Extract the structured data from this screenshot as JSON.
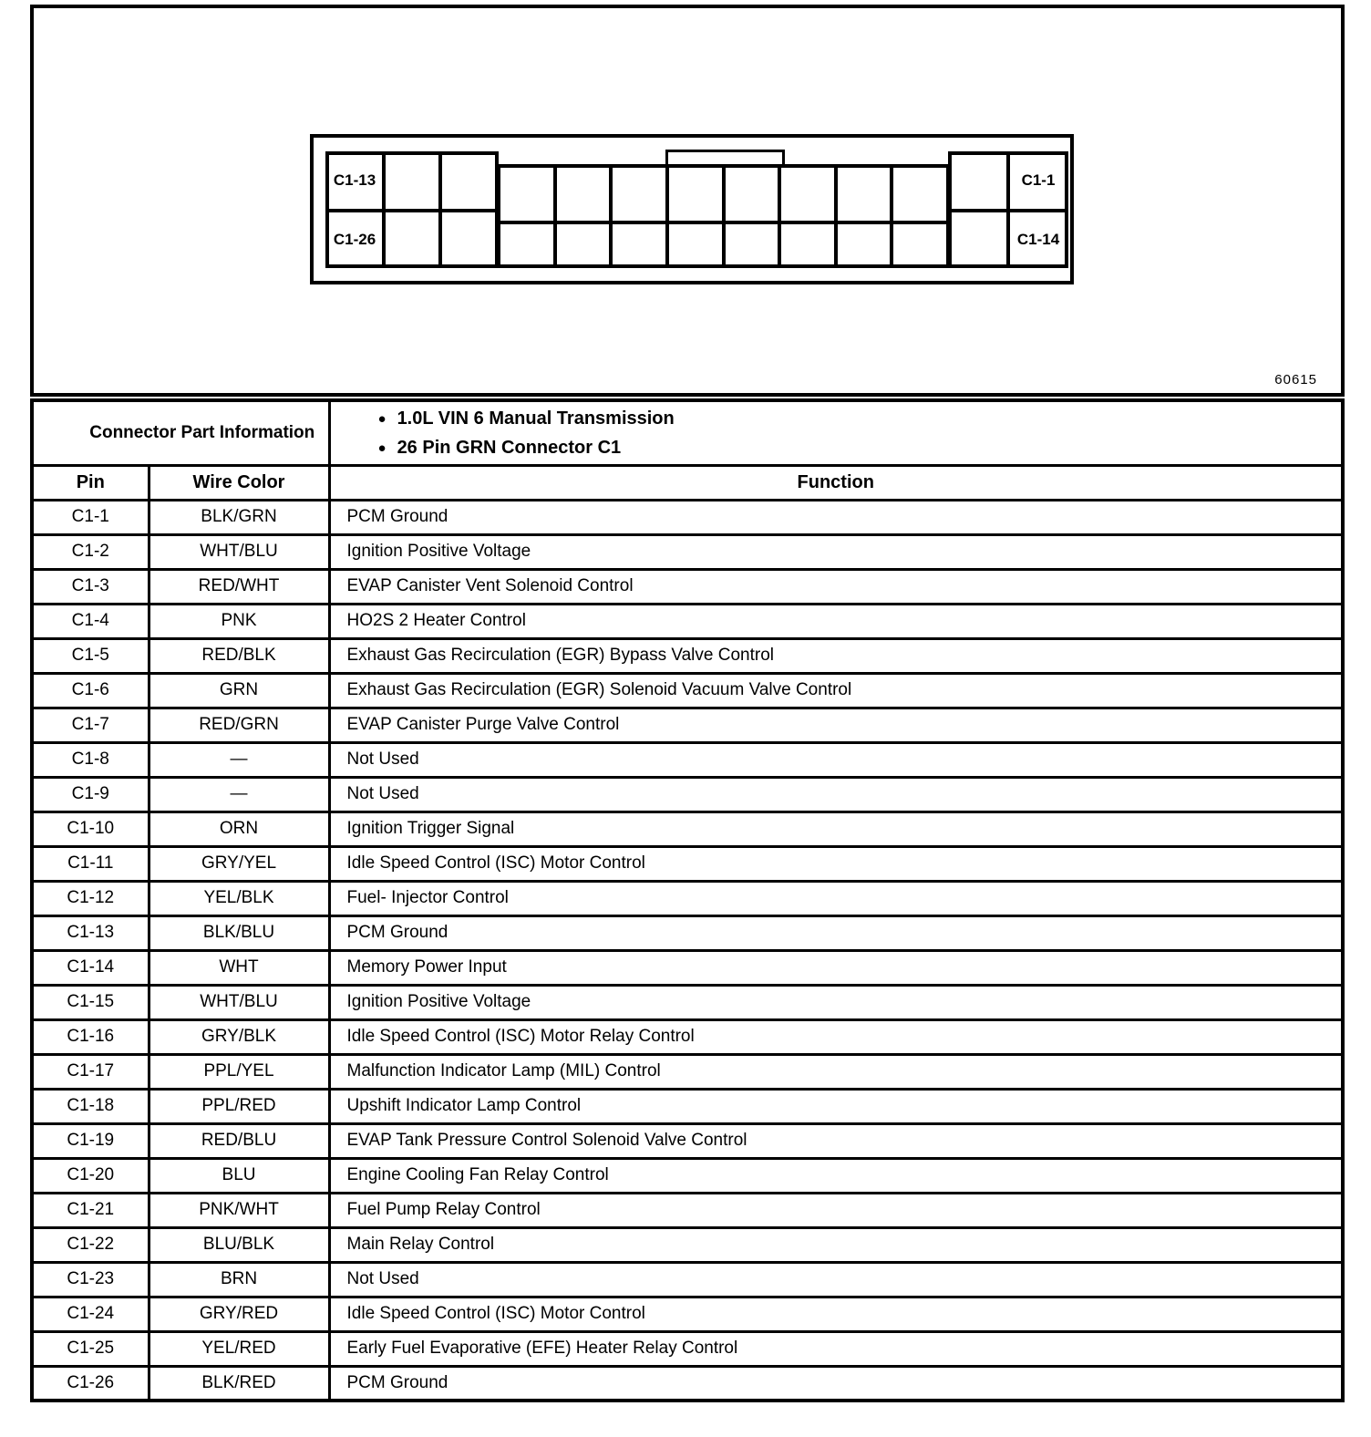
{
  "figure": {
    "code": "60615",
    "connector_labels": {
      "top_left": "C1-13",
      "bottom_left": "C1-26",
      "top_right": "C1-1",
      "bottom_right": "C1-14"
    }
  },
  "table": {
    "part_info_title": "Connector Part Information",
    "bullets": [
      "1.0L VIN 6 Manual Transmission",
      "26 Pin GRN Connector C1"
    ],
    "columns": {
      "pin": "Pin",
      "wire_color": "Wire Color",
      "function": "Function"
    },
    "rows": [
      {
        "pin": "C1-1",
        "wire_color": "BLK/GRN",
        "function": "PCM Ground"
      },
      {
        "pin": "C1-2",
        "wire_color": "WHT/BLU",
        "function": "Ignition Positive Voltage"
      },
      {
        "pin": "C1-3",
        "wire_color": "RED/WHT",
        "function": "EVAP Canister Vent Solenoid Control"
      },
      {
        "pin": "C1-4",
        "wire_color": "PNK",
        "function": "HO2S 2 Heater Control"
      },
      {
        "pin": "C1-5",
        "wire_color": "RED/BLK",
        "function": "Exhaust Gas Recirculation (EGR) Bypass Valve Control"
      },
      {
        "pin": "C1-6",
        "wire_color": "GRN",
        "function": "Exhaust Gas Recirculation (EGR) Solenoid Vacuum Valve Control"
      },
      {
        "pin": "C1-7",
        "wire_color": "RED/GRN",
        "function": "EVAP Canister Purge Valve Control"
      },
      {
        "pin": "C1-8",
        "wire_color": "—",
        "function": "Not Used"
      },
      {
        "pin": "C1-9",
        "wire_color": "—",
        "function": "Not Used"
      },
      {
        "pin": "C1-10",
        "wire_color": "ORN",
        "function": "Ignition Trigger Signal"
      },
      {
        "pin": "C1-11",
        "wire_color": "GRY/YEL",
        "function": "Idle Speed Control (ISC) Motor Control"
      },
      {
        "pin": "C1-12",
        "wire_color": "YEL/BLK",
        "function": "Fuel- Injector Control"
      },
      {
        "pin": "C1-13",
        "wire_color": "BLK/BLU",
        "function": "PCM Ground"
      },
      {
        "pin": "C1-14",
        "wire_color": "WHT",
        "function": "Memory Power Input"
      },
      {
        "pin": "C1-15",
        "wire_color": "WHT/BLU",
        "function": "Ignition Positive Voltage"
      },
      {
        "pin": "C1-16",
        "wire_color": "GRY/BLK",
        "function": "Idle Speed Control (ISC) Motor Relay Control"
      },
      {
        "pin": "C1-17",
        "wire_color": "PPL/YEL",
        "function": "Malfunction Indicator Lamp (MIL) Control"
      },
      {
        "pin": "C1-18",
        "wire_color": "PPL/RED",
        "function": "Upshift Indicator Lamp Control"
      },
      {
        "pin": "C1-19",
        "wire_color": "RED/BLU",
        "function": "EVAP Tank Pressure Control Solenoid Valve Control"
      },
      {
        "pin": "C1-20",
        "wire_color": "BLU",
        "function": "Engine Cooling Fan Relay Control"
      },
      {
        "pin": "C1-21",
        "wire_color": "PNK/WHT",
        "function": "Fuel Pump Relay Control"
      },
      {
        "pin": "C1-22",
        "wire_color": "BLU/BLK",
        "function": "Main Relay Control"
      },
      {
        "pin": "C1-23",
        "wire_color": "BRN",
        "function": "Not Used"
      },
      {
        "pin": "C1-24",
        "wire_color": "GRY/RED",
        "function": "Idle Speed Control (ISC) Motor Control"
      },
      {
        "pin": "C1-25",
        "wire_color": "YEL/RED",
        "function": "Early Fuel Evaporative (EFE) Heater Relay Control"
      },
      {
        "pin": "C1-26",
        "wire_color": "BLK/RED",
        "function": "PCM Ground"
      }
    ]
  }
}
